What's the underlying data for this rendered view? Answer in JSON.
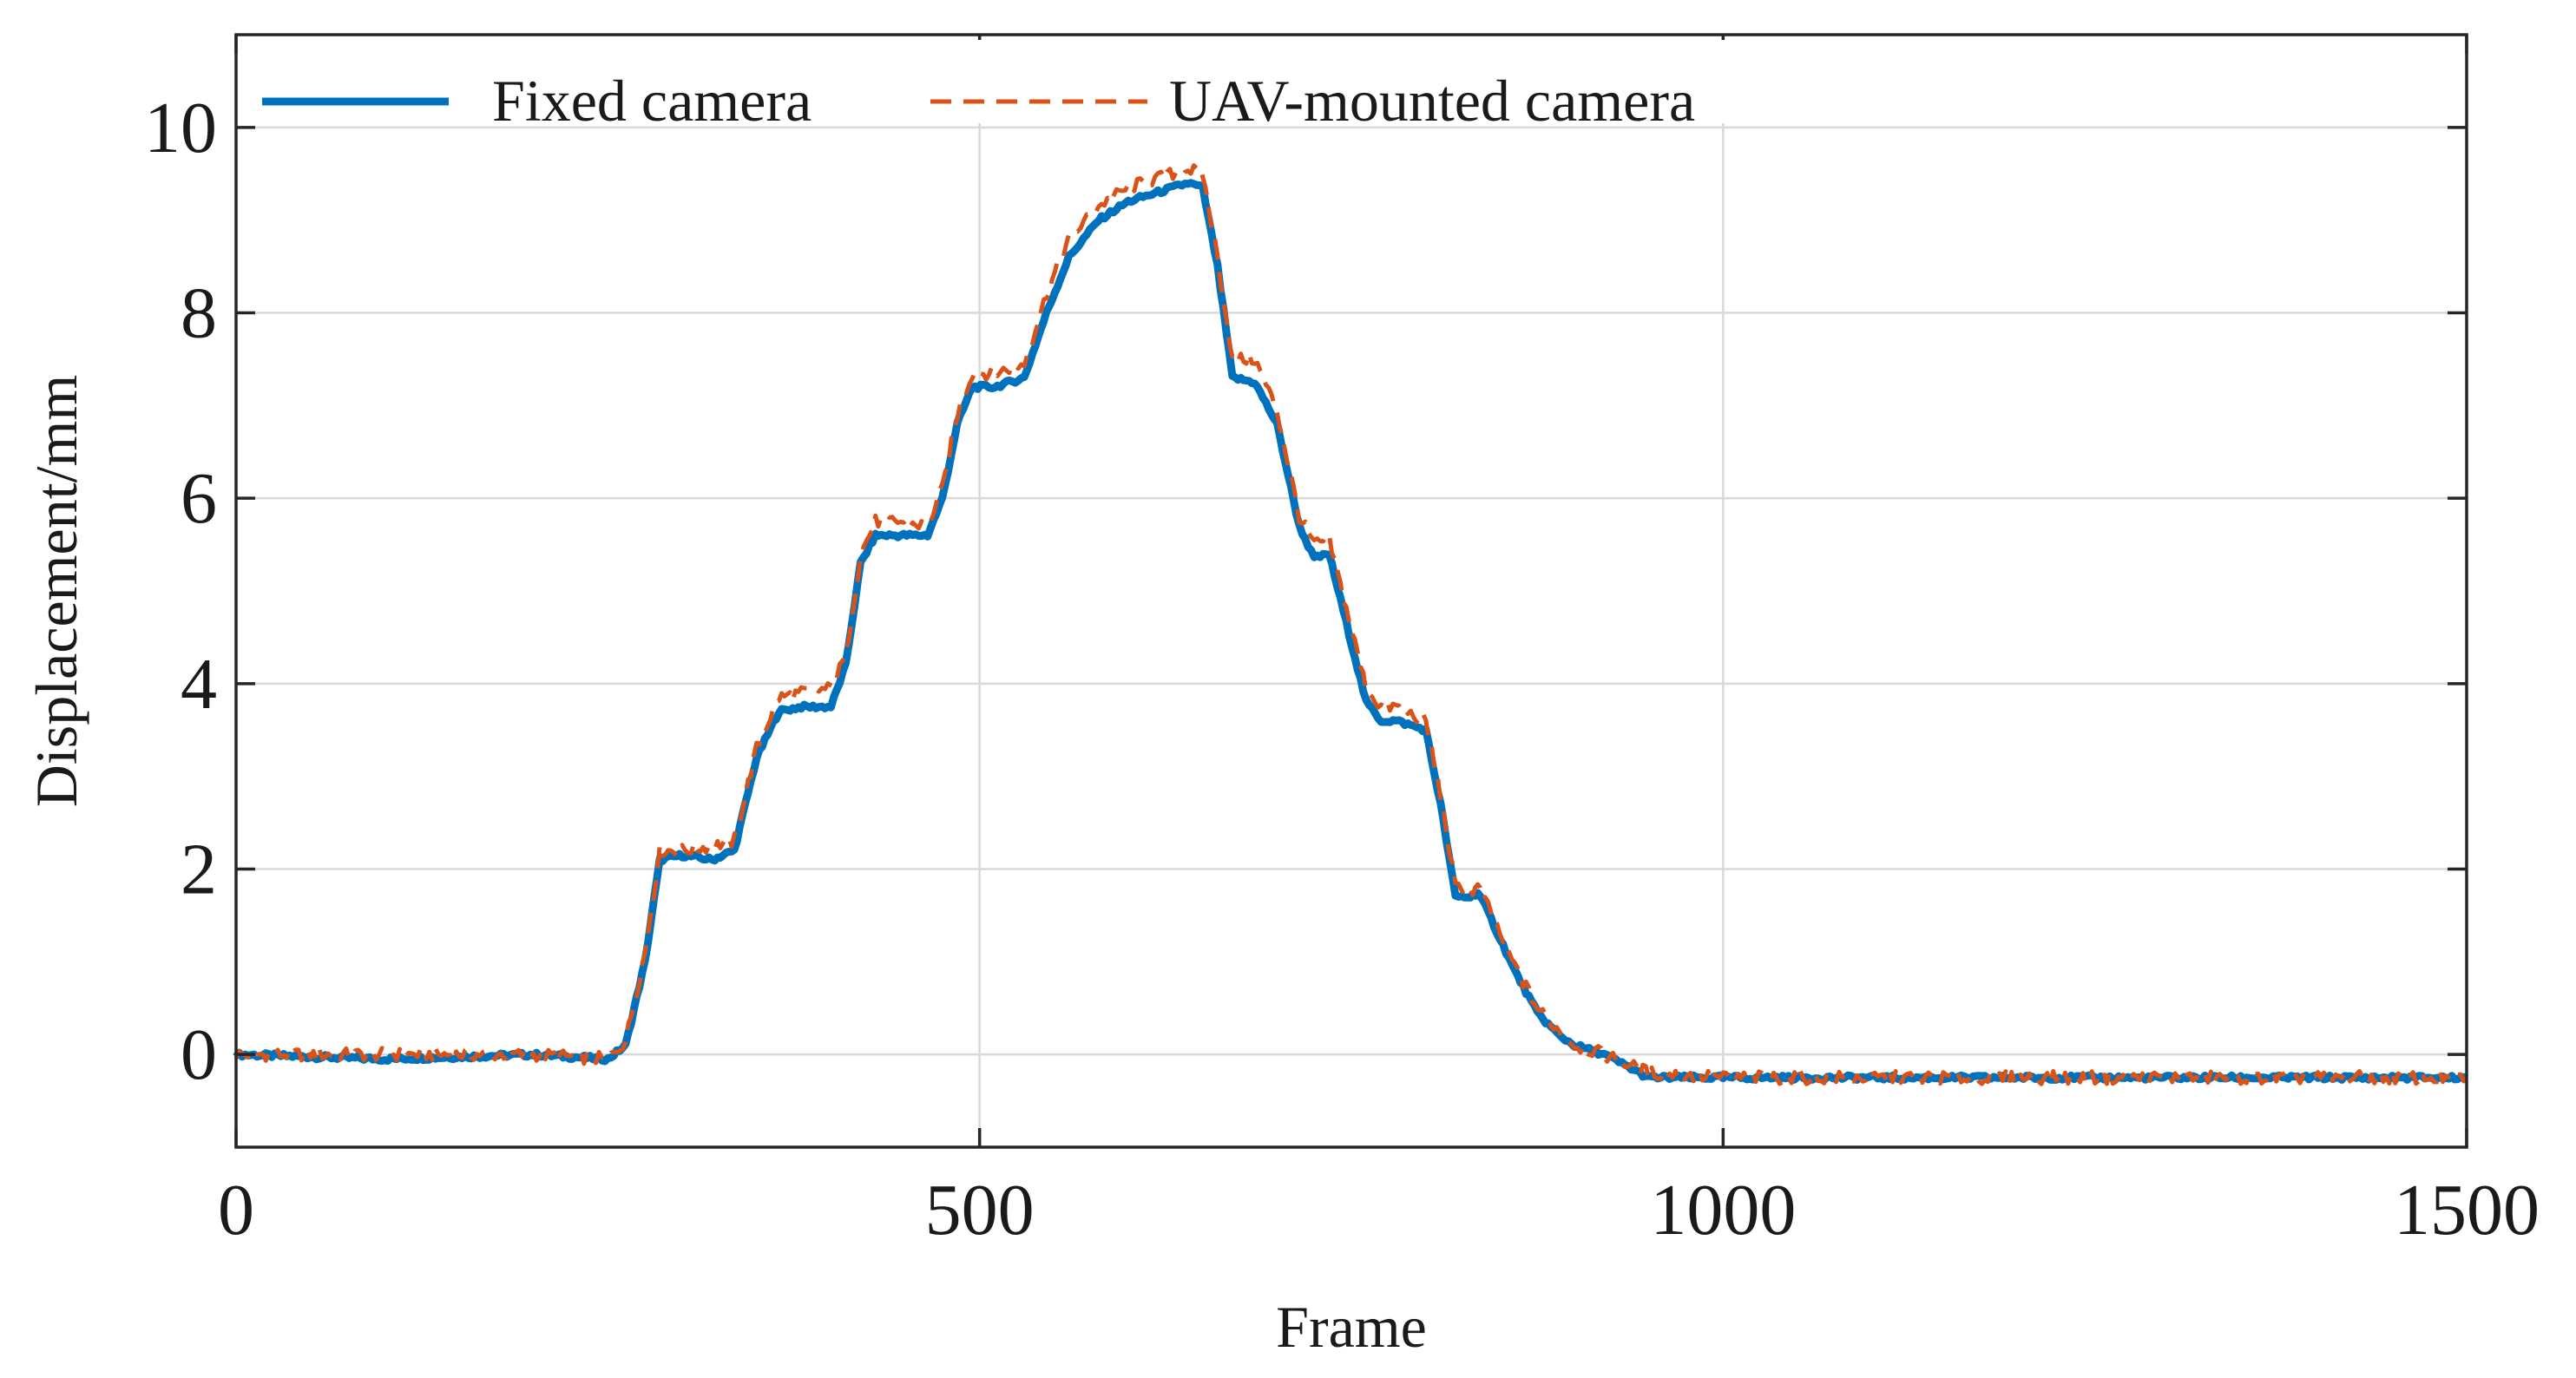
{
  "chart_data": {
    "type": "line",
    "title": "",
    "xlabel": "Frame",
    "ylabel": "Displacement/mm",
    "xlim": [
      0,
      1500
    ],
    "ylim": [
      -1,
      11
    ],
    "xticks": [
      0,
      500,
      1000,
      1500
    ],
    "yticks": [
      0,
      2,
      4,
      6,
      8,
      10
    ],
    "xtick_labels": [
      "0",
      "500",
      "1000",
      "1500"
    ],
    "ytick_labels": [
      "0",
      "2",
      "4",
      "6",
      "8",
      "10"
    ],
    "grid": true,
    "legend_position": "top-left",
    "series": [
      {
        "name": "Fixed camera",
        "color": "#0072BD",
        "style": "solid",
        "x": [
          0,
          100,
          200,
          250,
          262,
          275,
          285,
          300,
          320,
          335,
          350,
          365,
          380,
          400,
          410,
          420,
          430,
          445,
          465,
          475,
          485,
          495,
          510,
          530,
          545,
          560,
          580,
          600,
          620,
          640,
          650,
          660,
          670,
          685,
          700,
          715,
          725,
          735,
          760,
          770,
          780,
          800,
          810,
          820,
          830,
          835,
          840,
          860,
          875,
          890,
          900,
          920,
          950,
          1000,
          1100,
          1200,
          1300,
          1400,
          1500
        ],
        "y": [
          0,
          -0.05,
          0,
          -0.05,
          0.1,
          1.0,
          2.1,
          2.15,
          2.1,
          2.2,
          3.2,
          3.7,
          3.75,
          3.75,
          4.2,
          5.3,
          5.6,
          5.6,
          5.6,
          6.0,
          6.8,
          7.2,
          7.2,
          7.3,
          8.0,
          8.6,
          9.0,
          9.2,
          9.3,
          9.4,
          9.35,
          8.5,
          7.3,
          7.25,
          6.8,
          5.7,
          5.35,
          5.4,
          3.8,
          3.6,
          3.6,
          3.5,
          2.7,
          1.7,
          1.7,
          1.75,
          1.6,
          0.9,
          0.45,
          0.2,
          0.1,
          0.0,
          -0.25,
          -0.25,
          -0.25,
          -0.25,
          -0.25,
          -0.25,
          -0.25
        ]
      },
      {
        "name": "UAV-mounted camera",
        "color": "#D95319",
        "style": "dashed",
        "x": [
          0,
          100,
          200,
          250,
          262,
          275,
          285,
          300,
          320,
          335,
          350,
          365,
          380,
          400,
          410,
          420,
          430,
          445,
          465,
          475,
          485,
          495,
          510,
          530,
          545,
          560,
          580,
          600,
          620,
          640,
          650,
          660,
          670,
          685,
          700,
          715,
          725,
          735,
          760,
          770,
          780,
          800,
          810,
          820,
          830,
          835,
          840,
          860,
          875,
          890,
          900,
          920,
          950,
          1000,
          1100,
          1200,
          1300,
          1400,
          1500
        ],
        "y": [
          0,
          0,
          0,
          -0.05,
          0.15,
          1.1,
          2.2,
          2.2,
          2.25,
          2.3,
          3.3,
          3.85,
          3.9,
          3.95,
          4.3,
          5.4,
          5.75,
          5.75,
          5.7,
          6.1,
          6.9,
          7.35,
          7.35,
          7.45,
          8.2,
          8.8,
          9.15,
          9.35,
          9.45,
          9.55,
          9.5,
          8.6,
          7.5,
          7.5,
          6.95,
          5.8,
          5.5,
          5.55,
          3.95,
          3.75,
          3.75,
          3.6,
          2.8,
          1.8,
          1.75,
          1.8,
          1.65,
          0.95,
          0.5,
          0.25,
          0.1,
          0.0,
          -0.2,
          -0.25,
          -0.25,
          -0.25,
          -0.25,
          -0.25,
          -0.25
        ]
      }
    ]
  }
}
